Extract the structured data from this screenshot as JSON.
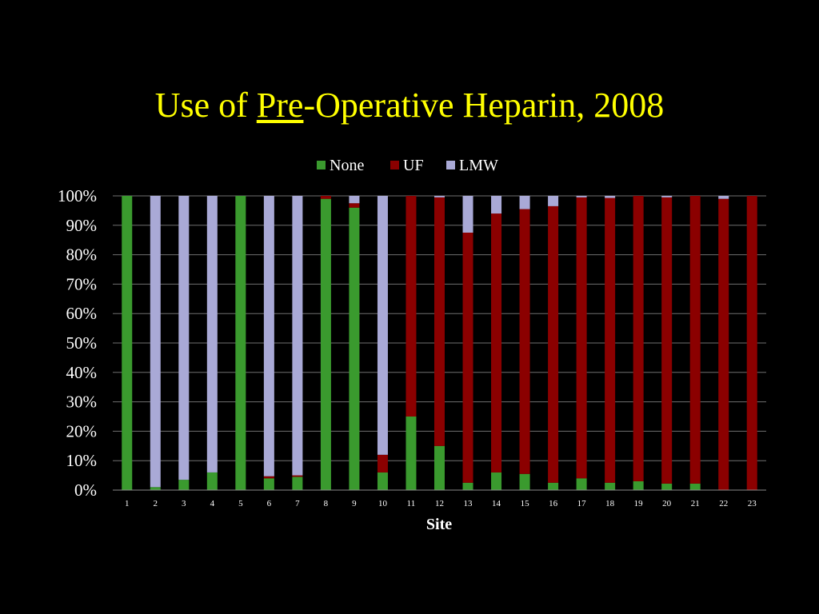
{
  "slide": {
    "title_before": "Use of ",
    "title_underlined": "Pre",
    "title_after": "-Operative Heparin, 2008"
  },
  "chart_data": {
    "type": "bar",
    "stacked": "percent",
    "categories": [
      "1",
      "2",
      "3",
      "4",
      "5",
      "6",
      "7",
      "8",
      "9",
      "10",
      "11",
      "12",
      "13",
      "14",
      "15",
      "16",
      "17",
      "18",
      "19",
      "20",
      "21",
      "22",
      "23"
    ],
    "series": [
      {
        "name": "None",
        "color": "#3a9a2e",
        "values": [
          100,
          1,
          3.5,
          6,
          100,
          4,
          4.5,
          99,
          96,
          6,
          25,
          15,
          2.5,
          6,
          5.5,
          2.5,
          4,
          2.5,
          3,
          2.2,
          2.2,
          0,
          0
        ]
      },
      {
        "name": "UF",
        "color": "#8b0000",
        "values": [
          0,
          0,
          0,
          0,
          0,
          0.7,
          0.5,
          1,
          1.5,
          6,
          75,
          84.5,
          85,
          88,
          90,
          94,
          95.5,
          96.8,
          97,
          97.3,
          97.8,
          99,
          100
        ]
      },
      {
        "name": "LMW",
        "color": "#a9a9d6",
        "values": [
          0,
          99,
          96.5,
          94,
          0,
          95.3,
          95,
          0,
          2.5,
          88,
          0,
          0.5,
          12.5,
          6,
          4.5,
          3.5,
          0.5,
          0.7,
          0,
          0.5,
          0,
          1,
          0
        ]
      }
    ],
    "xlabel": "Site",
    "ylabel": "",
    "ylim": [
      0,
      100
    ],
    "yticks": [
      "0%",
      "10%",
      "20%",
      "30%",
      "40%",
      "50%",
      "60%",
      "70%",
      "80%",
      "90%",
      "100%"
    ],
    "grid": true,
    "legend": "top-center"
  }
}
